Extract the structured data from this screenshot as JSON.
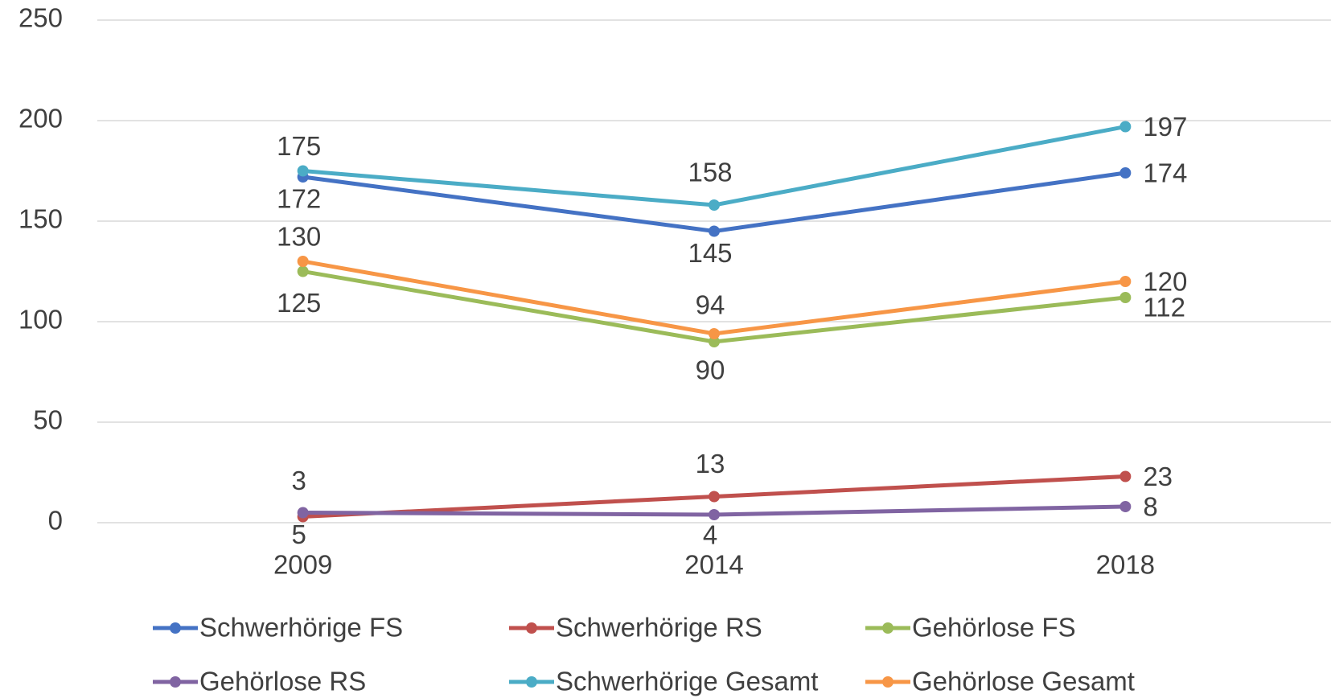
{
  "chart_data": {
    "type": "line",
    "categories": [
      "2009",
      "2014",
      "2018"
    ],
    "series": [
      {
        "name": "Schwerhörige FS",
        "color": "#4472c4",
        "values": [
          172,
          145,
          174
        ]
      },
      {
        "name": "Schwerhörige RS",
        "color": "#c0504d",
        "values": [
          3,
          13,
          23
        ]
      },
      {
        "name": "Gehörlose FS",
        "color": "#9bbb59",
        "values": [
          125,
          90,
          112
        ]
      },
      {
        "name": "Gehörlose RS",
        "color": "#8064a2",
        "values": [
          5,
          4,
          8
        ]
      },
      {
        "name": "Schwerhörige Gesamt",
        "color": "#4bacc6",
        "values": [
          175,
          158,
          197
        ]
      },
      {
        "name": "Gehörlose Gesamt",
        "color": "#f79646",
        "values": [
          130,
          94,
          120
        ]
      }
    ],
    "ylim": [
      0,
      250
    ],
    "yticks": [
      0,
      50,
      100,
      150,
      200,
      250
    ],
    "grid": true,
    "legend": "bottom"
  }
}
